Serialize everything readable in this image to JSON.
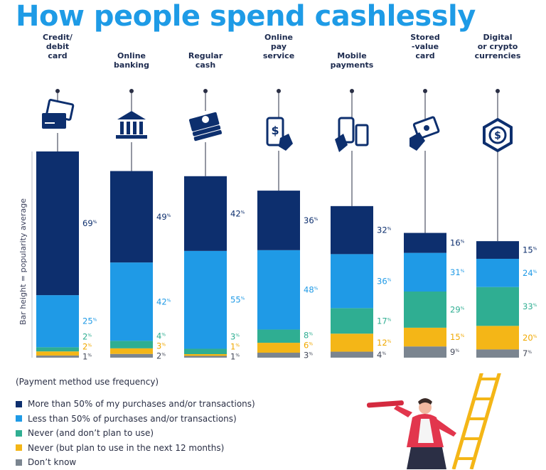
{
  "title": "How people spend cashlessly",
  "legend_title": "(Payment method use frequency)",
  "legend": [
    {
      "label": "More than 50% of my purchases and/or transactions)",
      "color": "#0d2f6e"
    },
    {
      "label": "Less than 50% of purchases and/or transactions)",
      "color": "#1f9ae6"
    },
    {
      "label": "Never (and don’t plan to use)",
      "color": "#2fae92"
    },
    {
      "label": "Never (but plan to use in the next 12 months)",
      "color": "#f4b617"
    },
    {
      "label": "Don’t know",
      "color": "#7b8590"
    }
  ],
  "icons": [
    "credit-card-icon",
    "bank-icon",
    "cash-icon",
    "phone-pay-icon",
    "mobile-payment-icon",
    "stored-value-card-icon",
    "crypto-currency-icon"
  ],
  "chart_data": {
    "type": "bar",
    "stacked": true,
    "ylabel": "Bar height = popularity average",
    "categories": [
      [
        "Credit/",
        "debit",
        "card"
      ],
      [
        "Online",
        "banking"
      ],
      [
        "Regular",
        "cash"
      ],
      [
        "Online",
        "pay",
        "service"
      ],
      [
        "Mobile",
        "payments"
      ],
      [
        "Stored",
        "-value",
        "card"
      ],
      [
        "Digital",
        "or crypto",
        "currencies"
      ]
    ],
    "popularity_height_relative": [
      1.0,
      0.905,
      0.88,
      0.81,
      0.735,
      0.605,
      0.565
    ],
    "series": [
      {
        "name": "More than 50% of my purchases and/or transactions)",
        "color": "#0d2f6e",
        "text_color": "#0d2f6e",
        "values": [
          69,
          49,
          42,
          36,
          32,
          16,
          15
        ]
      },
      {
        "name": "Less than 50% of purchases and/or transactions)",
        "color": "#1f9ae6",
        "text_color": "#1f9ae6",
        "values": [
          25,
          42,
          55,
          48,
          36,
          31,
          24
        ]
      },
      {
        "name": "Never (and don’t plan to use)",
        "color": "#2fae92",
        "text_color": "#2fae92",
        "values": [
          2,
          4,
          3,
          8,
          17,
          29,
          33
        ]
      },
      {
        "name": "Never (but plan to use in the next 12 months)",
        "color": "#f4b617",
        "text_color": "#f0a800",
        "values": [
          2,
          3,
          1,
          6,
          12,
          15,
          20
        ]
      },
      {
        "name": "Don’t know",
        "color": "#7b8590",
        "text_color": "#444a5a",
        "values": [
          1,
          2,
          1,
          3,
          4,
          9,
          7
        ]
      }
    ],
    "value_suffix": "%"
  }
}
